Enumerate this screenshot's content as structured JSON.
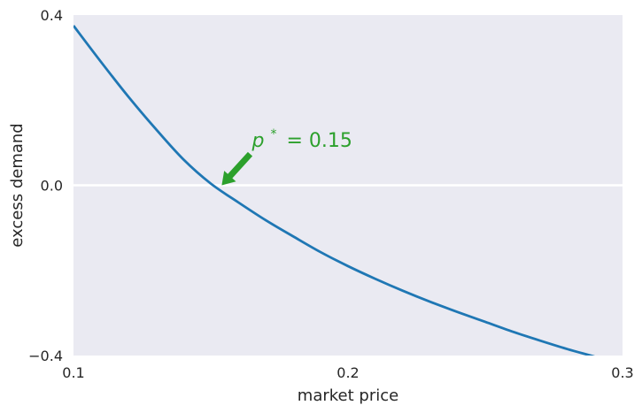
{
  "chart_data": {
    "type": "line",
    "title": "",
    "xlabel": "market price",
    "ylabel": "excess demand",
    "xlim": [
      0.1,
      0.3
    ],
    "ylim": [
      -0.4,
      0.4
    ],
    "xticks": [
      {
        "value": 0.1,
        "label": "0.1"
      },
      {
        "value": 0.2,
        "label": "0.2"
      },
      {
        "value": 0.3,
        "label": "0.3"
      }
    ],
    "yticks": [
      {
        "value": 0.4,
        "label": "0.4"
      },
      {
        "value": 0.0,
        "label": "0.0"
      },
      {
        "value": -0.4,
        "label": "−0.4"
      }
    ],
    "grid": false,
    "background_color": "#eaeaf2",
    "series": [
      {
        "color": "#1f77b4",
        "x": [
          0.1,
          0.11,
          0.12,
          0.13,
          0.14,
          0.15,
          0.16,
          0.17,
          0.18,
          0.19,
          0.2,
          0.21,
          0.22,
          0.23,
          0.24,
          0.25,
          0.26,
          0.27,
          0.28,
          0.29,
          0.3
        ],
        "y": [
          0.375,
          0.29,
          0.208,
          0.132,
          0.061,
          0.004,
          -0.04,
          -0.082,
          -0.12,
          -0.157,
          -0.19,
          -0.22,
          -0.248,
          -0.274,
          -0.298,
          -0.321,
          -0.344,
          -0.365,
          -0.385,
          -0.403,
          -0.422
        ]
      }
    ],
    "horizontal_line": {
      "y": 0.0,
      "color": "#ffffff"
    },
    "annotation": {
      "text_main": "p",
      "text_sup": "*",
      "text_rest": "= 0.15",
      "color": "#2ca02c",
      "point": {
        "x": 0.154,
        "y": 0.0
      },
      "text_pos": {
        "x": 0.165,
        "y": 0.09
      }
    }
  }
}
